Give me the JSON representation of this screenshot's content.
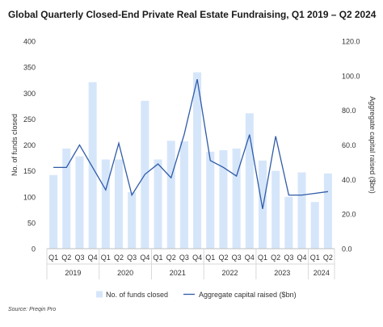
{
  "title": "Global Quarterly Closed-End Private Real Estate Fundraising, Q1 2019 – Q2 2024",
  "source": "Source: Preqin Pro",
  "colors": {
    "bar": "#d6e6fa",
    "line": "#2f5ba8",
    "text": "#1a1a1a",
    "grid": "#d9d9d9"
  },
  "chart_data": {
    "type": "bar+line",
    "title": "Global Quarterly Closed-End Private Real Estate Fundraising, Q1 2019 – Q2 2024",
    "categories": [
      "Q1",
      "Q2",
      "Q3",
      "Q4",
      "Q1",
      "Q2",
      "Q3",
      "Q4",
      "Q1",
      "Q2",
      "Q3",
      "Q4",
      "Q1",
      "Q2",
      "Q3",
      "Q4",
      "Q1",
      "Q2",
      "Q3",
      "Q4",
      "Q1",
      "Q2"
    ],
    "years": [
      {
        "label": "2019",
        "count": 4
      },
      {
        "label": "2020",
        "count": 4
      },
      {
        "label": "2021",
        "count": 4
      },
      {
        "label": "2022",
        "count": 4
      },
      {
        "label": "2023",
        "count": 4
      },
      {
        "label": "2024",
        "count": 2
      }
    ],
    "ylabel": "No. of funds closed",
    "y2label": "Aggregate capital raised ($bn)",
    "ylim": [
      0,
      400
    ],
    "y2lim": [
      0,
      120
    ],
    "y_ticks": [
      "0",
      "50",
      "100",
      "150",
      "200",
      "250",
      "300",
      "350",
      "400"
    ],
    "y2_ticks": [
      "0.0",
      "20.0",
      "40.0",
      "60.0",
      "80.0",
      "100.0",
      "120.0"
    ],
    "series": [
      {
        "name": "No. of funds closed",
        "type": "bar",
        "axis": "left",
        "values": [
          142,
          193,
          178,
          321,
          172,
          172,
          109,
          285,
          172,
          208,
          207,
          340,
          187,
          190,
          193,
          261,
          170,
          150,
          100,
          147,
          90,
          145
        ]
      },
      {
        "name": "Aggregate capital raised ($bn)",
        "type": "line",
        "axis": "right",
        "values": [
          47,
          47,
          60,
          47,
          34,
          61,
          31,
          43,
          49,
          41,
          66,
          98,
          51,
          47,
          42,
          66,
          23,
          65,
          31,
          31,
          32,
          33
        ]
      }
    ],
    "legend": {
      "position": "bottom"
    },
    "grid": false
  }
}
